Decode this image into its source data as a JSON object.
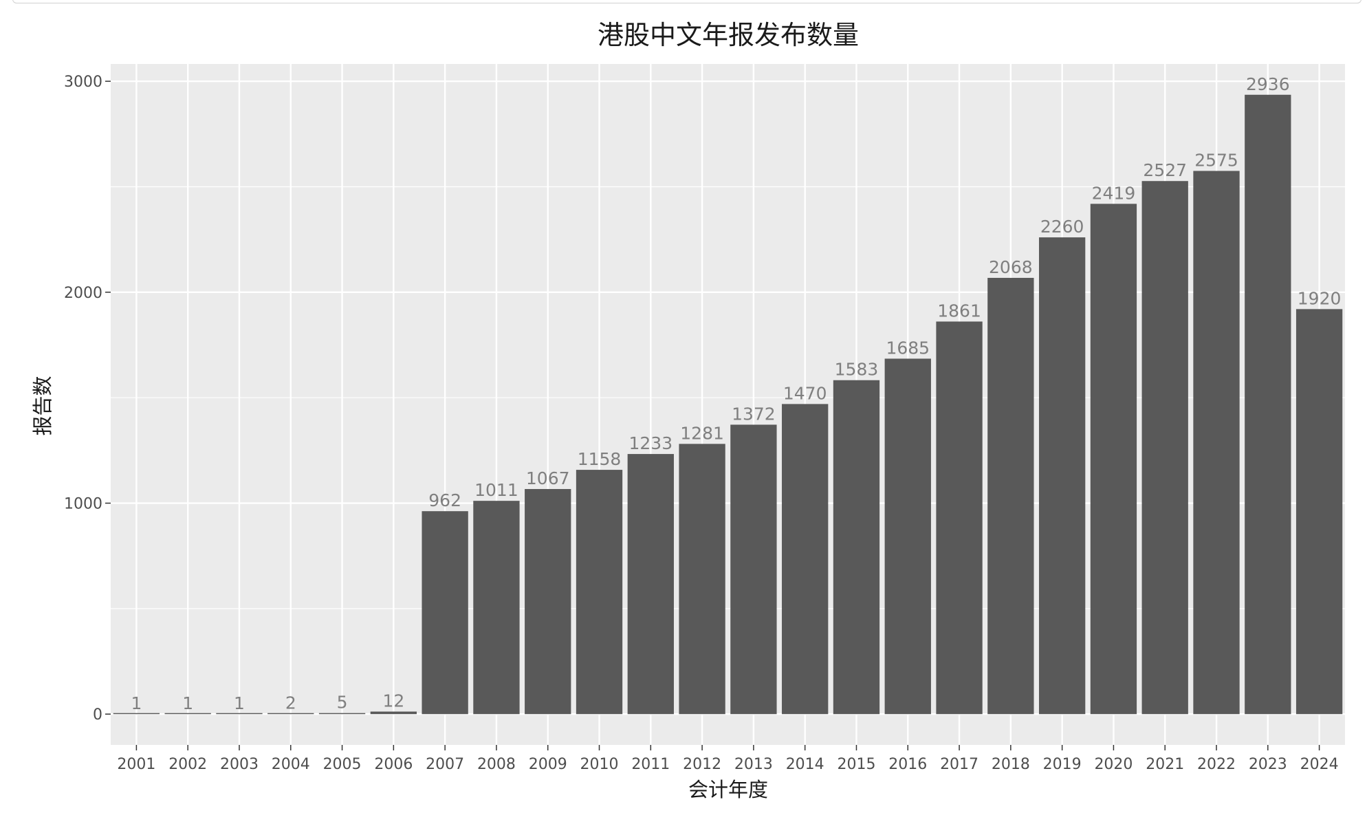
{
  "chart_data": {
    "type": "bar",
    "title": "港股中文年报发布数量",
    "xlabel": "会计年度",
    "ylabel": "报告数",
    "categories": [
      "2001",
      "2002",
      "2003",
      "2004",
      "2005",
      "2006",
      "2007",
      "2008",
      "2009",
      "2010",
      "2011",
      "2012",
      "2013",
      "2014",
      "2015",
      "2016",
      "2017",
      "2018",
      "2019",
      "2020",
      "2021",
      "2022",
      "2023",
      "2024"
    ],
    "values": [
      1,
      1,
      1,
      2,
      5,
      12,
      962,
      1011,
      1067,
      1158,
      1233,
      1281,
      1372,
      1470,
      1583,
      1685,
      1861,
      2068,
      2260,
      2419,
      2527,
      2575,
      2936,
      1920
    ],
    "yticks": [
      0,
      1000,
      2000,
      3000
    ],
    "ylim": [
      -146,
      3082
    ],
    "grid": true,
    "data_labels": true,
    "colors": {
      "bar": "#595959",
      "panel": "#ebebeb",
      "grid": "#ffffff",
      "value_label": "#7f7f7f"
    }
  }
}
